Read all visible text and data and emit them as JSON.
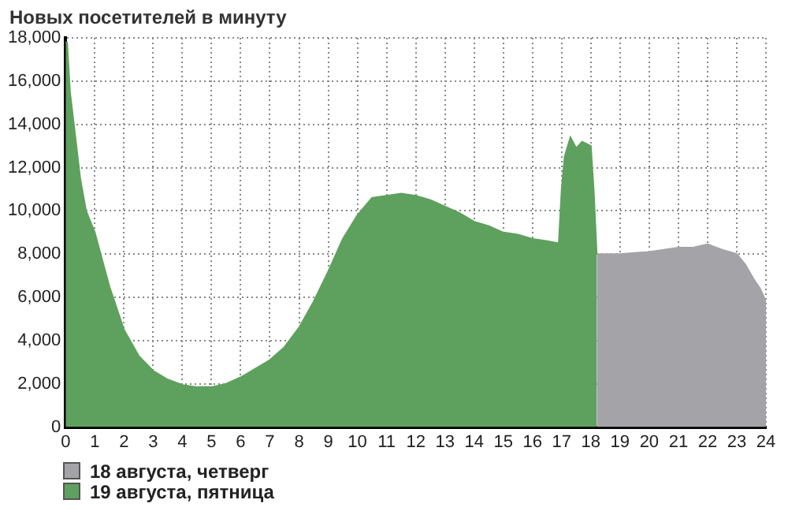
{
  "chart_data": {
    "type": "area",
    "title": "Новых посетителей в минуту",
    "xlim": [
      0,
      24
    ],
    "xticks": [
      0,
      1,
      2,
      3,
      4,
      5,
      6,
      7,
      8,
      9,
      10,
      11,
      12,
      13,
      14,
      15,
      16,
      17,
      18,
      19,
      20,
      21,
      22,
      23,
      24
    ],
    "ylim": [
      0,
      18000
    ],
    "yticks": [
      0,
      {
        "value": 2000,
        "label": "2,000"
      },
      {
        "value": 4000,
        "label": "4,000"
      },
      {
        "value": 6000,
        "label": "6,000"
      },
      {
        "value": 8000,
        "label": "8,000"
      },
      {
        "value": 10000,
        "label": "10,000"
      },
      {
        "value": 12000,
        "label": "12,000"
      },
      {
        "value": 14000,
        "label": "14,000"
      },
      {
        "value": 16000,
        "label": "16,000"
      },
      {
        "value": 18000,
        "label": "18,000"
      }
    ],
    "grid": true,
    "legend": "bottom left",
    "series": [
      {
        "name": "18 августа, четверг",
        "color": "#a4a3a8",
        "x": [
          18.2,
          18.5,
          19,
          19.5,
          20,
          20.5,
          21,
          21.5,
          22,
          22.5,
          23,
          23.3,
          23.6,
          23.8,
          24
        ],
        "values": [
          8000,
          8000,
          8000,
          8050,
          8100,
          8200,
          8300,
          8300,
          8450,
          8200,
          8000,
          7500,
          6800,
          6400,
          5800
        ]
      },
      {
        "name": "19 августа, пятница",
        "color": "#5ea15e",
        "x": [
          0,
          0.05,
          0.15,
          0.3,
          0.5,
          0.7,
          1,
          1.3,
          1.5,
          2,
          2.5,
          3,
          3.5,
          4,
          4.5,
          5,
          5.5,
          6,
          6.5,
          7,
          7.5,
          8,
          8.5,
          9,
          9.5,
          10,
          10.5,
          11,
          11.5,
          12,
          12.5,
          13,
          13.5,
          14,
          14.5,
          15,
          15.5,
          16,
          16.5,
          16.9,
          17,
          17.1,
          17.3,
          17.5,
          17.7,
          18,
          18.1,
          18.2
        ],
        "values": [
          17800,
          17800,
          15500,
          13800,
          11500,
          10000,
          9000,
          7500,
          6500,
          4500,
          3300,
          2600,
          2200,
          1950,
          1850,
          1850,
          2000,
          2300,
          2700,
          3100,
          3700,
          4600,
          5800,
          7200,
          8700,
          9800,
          10600,
          10700,
          10800,
          10700,
          10500,
          10200,
          9900,
          9500,
          9300,
          9000,
          8900,
          8700,
          8600,
          8500,
          11000,
          12500,
          13400,
          12900,
          13200,
          13000,
          10900,
          8000
        ]
      }
    ]
  }
}
